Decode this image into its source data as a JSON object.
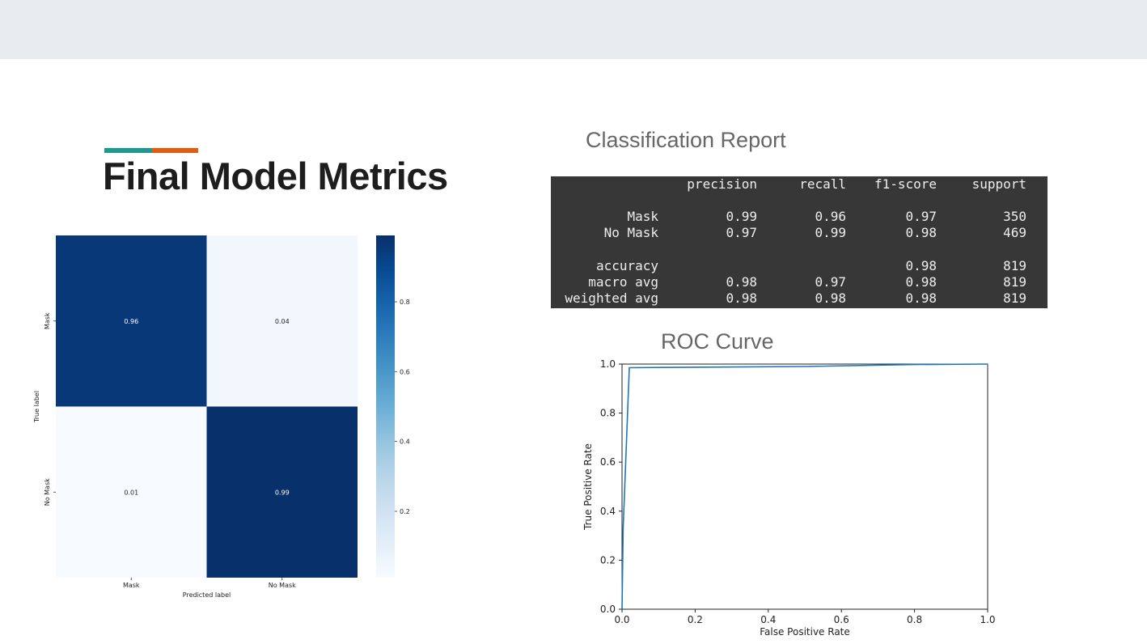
{
  "slide": {
    "title": "Final Model Metrics",
    "accent_colors": [
      "#1a9b8e",
      "#e8590c"
    ]
  },
  "report": {
    "title": "Classification Report",
    "header": [
      "precision",
      "recall",
      "f1-score",
      "support"
    ],
    "rows": [
      {
        "label": "Mask",
        "cells": [
          "0.99",
          "0.96",
          "0.97",
          "350"
        ]
      },
      {
        "label": "No Mask",
        "cells": [
          "0.97",
          "0.99",
          "0.98",
          "469"
        ]
      },
      {
        "label": "accuracy",
        "cells": [
          "",
          "",
          "0.98",
          "819"
        ]
      },
      {
        "label": "macro avg",
        "cells": [
          "0.98",
          "0.97",
          "0.98",
          "819"
        ]
      },
      {
        "label": "weighted avg",
        "cells": [
          "0.98",
          "0.98",
          "0.98",
          "819"
        ]
      }
    ]
  },
  "roc": {
    "title": "ROC Curve"
  },
  "chart_data": [
    {
      "type": "heatmap",
      "rows": [
        "Mask",
        "No Mask"
      ],
      "columns": [
        "Mask",
        "No Mask"
      ],
      "values": [
        [
          0.96,
          0.04
        ],
        [
          0.01,
          0.99
        ]
      ],
      "annotations": [
        [
          "0.96",
          "0.04"
        ],
        [
          "0.01",
          "0.99"
        ]
      ],
      "xlabel": "Predicted label",
      "ylabel": "True label",
      "colormap": "Blues",
      "colorbar_range": [
        0.01,
        0.99
      ],
      "colorbar_ticks": [
        0.2,
        0.4,
        0.6,
        0.8
      ],
      "colorbar_tick_labels": [
        "0.2",
        "0.4",
        "0.6",
        "0.8"
      ]
    },
    {
      "type": "line",
      "xlabel": "False Positive Rate",
      "ylabel": "True Positive Rate",
      "xlim": [
        0.0,
        1.0
      ],
      "ylim": [
        0.0,
        1.0
      ],
      "xticks": [
        "0.0",
        "0.2",
        "0.4",
        "0.6",
        "0.8",
        "1.0"
      ],
      "yticks": [
        "0.0",
        "0.2",
        "0.4",
        "0.6",
        "0.8",
        "1.0"
      ],
      "grid": false,
      "line_color": "#1f77b4",
      "series": [
        {
          "x": [
            0.0,
            0.003,
            0.02,
            0.1,
            0.5,
            0.8,
            1.0
          ],
          "y": [
            0.0,
            0.33,
            0.985,
            0.986,
            0.99,
            0.998,
            1.0
          ]
        }
      ]
    }
  ]
}
